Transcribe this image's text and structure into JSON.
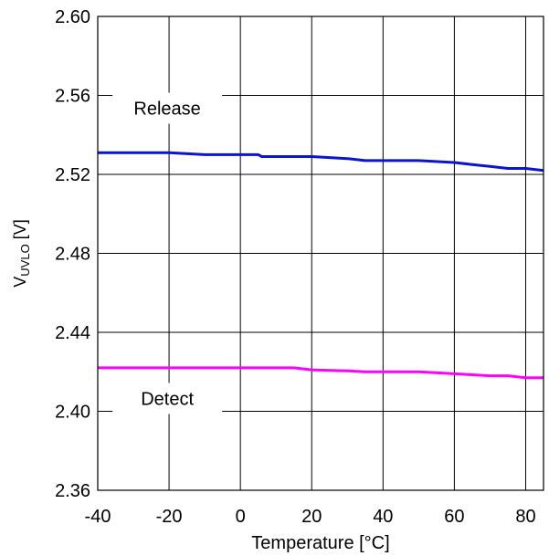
{
  "chart_data": {
    "type": "line",
    "xlabel": "Temperature [°C]",
    "ylabel": {
      "main": "V",
      "sub": "UVLO",
      "unit": " [V]"
    },
    "xlim": [
      -40,
      85
    ],
    "ylim": [
      2.36,
      2.6
    ],
    "x_ticks": [
      -40,
      -20,
      0,
      20,
      40,
      60,
      80
    ],
    "x_tick_labels": [
      "-40",
      "-20",
      "0",
      "20",
      "40",
      "60",
      "80"
    ],
    "y_ticks": [
      2.36,
      2.4,
      2.44,
      2.48,
      2.52,
      2.56,
      2.6
    ],
    "y_tick_labels": [
      "2.36",
      "2.40",
      "2.44",
      "2.48",
      "2.52",
      "2.56",
      "2.60"
    ],
    "grid": true,
    "series": [
      {
        "name": "Release",
        "color": "#0a14d2",
        "x": [
          -40,
          -30,
          -20,
          -10,
          0,
          5,
          6,
          10,
          20,
          30,
          35,
          40,
          50,
          60,
          65,
          70,
          75,
          80,
          85
        ],
        "y": [
          2.531,
          2.531,
          2.531,
          2.53,
          2.53,
          2.53,
          2.529,
          2.529,
          2.529,
          2.528,
          2.527,
          2.527,
          2.527,
          2.526,
          2.525,
          2.524,
          2.523,
          2.523,
          2.522
        ]
      },
      {
        "name": "Detect",
        "color": "#ff00ff",
        "x": [
          -40,
          -20,
          0,
          10,
          15,
          20,
          30,
          35,
          40,
          50,
          60,
          65,
          70,
          75,
          80,
          85
        ],
        "y": [
          2.422,
          2.422,
          2.422,
          2.422,
          2.422,
          2.421,
          2.4205,
          2.42,
          2.42,
          2.42,
          2.419,
          2.4185,
          2.418,
          2.418,
          2.417,
          2.417
        ]
      }
    ]
  }
}
